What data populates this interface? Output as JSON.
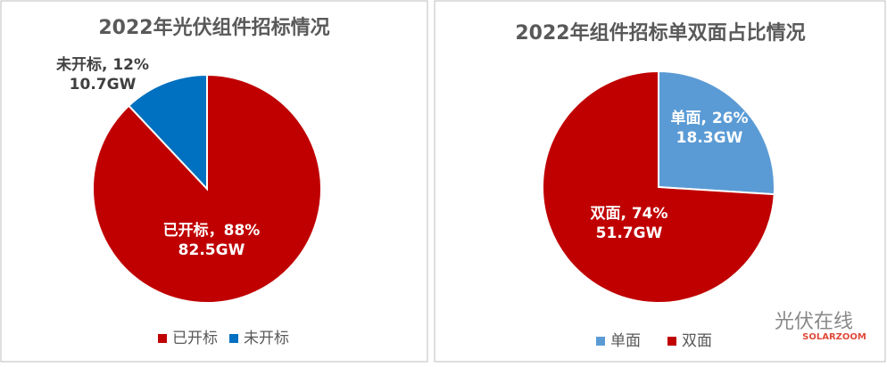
{
  "chart_data": [
    {
      "type": "pie",
      "title": "2022年光伏组件招标情况",
      "categories": [
        "已开标",
        "未开标"
      ],
      "values": [
        88,
        12
      ],
      "value_labels": [
        "已开标，88%",
        "未开标, 12%"
      ],
      "capacity_labels": [
        "82.5GW",
        "10.7GW"
      ],
      "colors": [
        "#c00000",
        "#0070c0"
      ],
      "legend": "bottom"
    },
    {
      "type": "pie",
      "title": "2022年组件招标单双面占比情况",
      "categories": [
        "单面",
        "双面"
      ],
      "values": [
        26,
        74
      ],
      "value_labels": [
        "单面, 26%",
        "双面, 74%"
      ],
      "capacity_labels": [
        "18.3GW",
        "51.7GW"
      ],
      "colors": [
        "#5b9bd5",
        "#c00000"
      ],
      "legend": "bottom"
    }
  ],
  "watermark": {
    "text": "光伏在线",
    "sub": "SOLARZOOM"
  }
}
